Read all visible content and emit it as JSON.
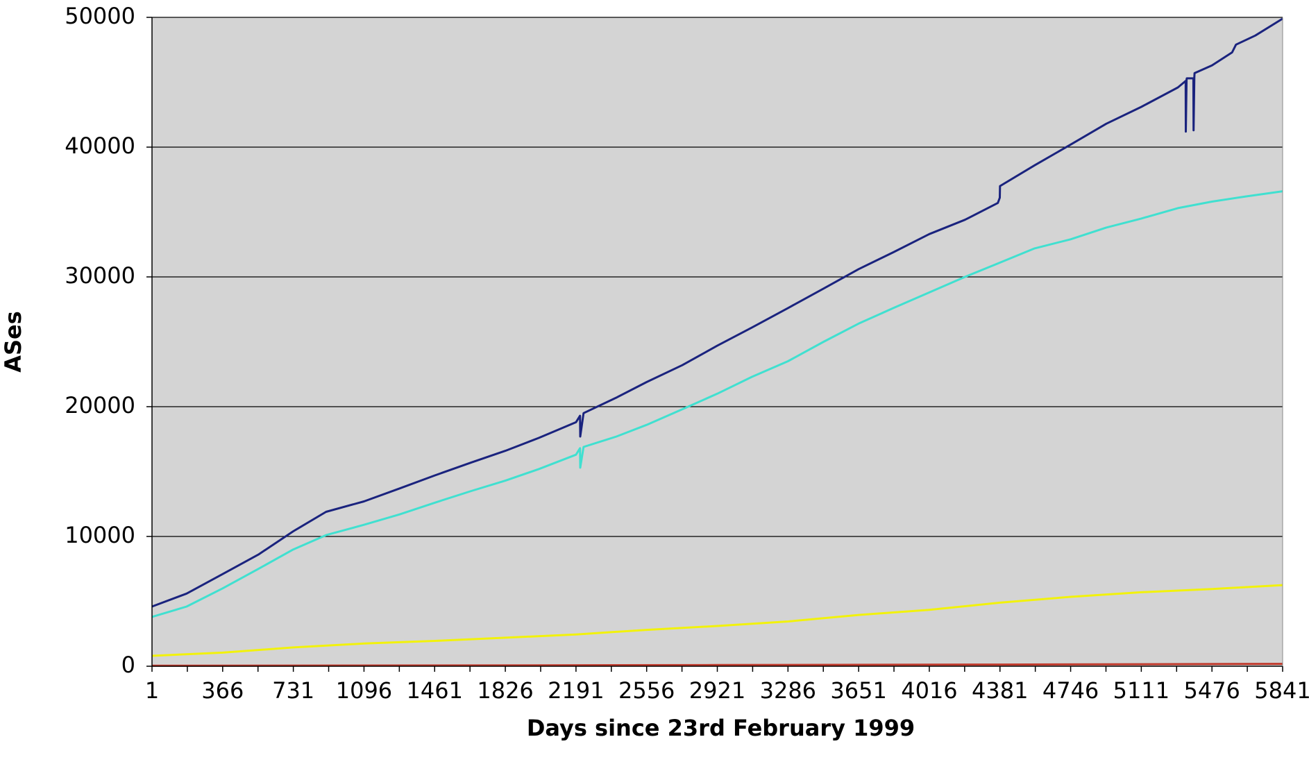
{
  "chart_data": {
    "type": "line",
    "title": "",
    "xlabel": "Days since 23rd February 1999",
    "ylabel": "ASes",
    "xlim": [
      1,
      5841
    ],
    "ylim": [
      0,
      50000
    ],
    "x_ticks": [
      "1",
      "366",
      "731",
      "1096",
      "1461",
      "1826",
      "2191",
      "2556",
      "2921",
      "3286",
      "3651",
      "4016",
      "4381",
      "4746",
      "5111",
      "5476",
      "5841"
    ],
    "y_ticks": [
      "0",
      "10000",
      "20000",
      "30000",
      "40000",
      "50000"
    ],
    "grid": true,
    "legend": "none",
    "plot_background": "#d4d4d4",
    "series": [
      {
        "color": "#1a237e",
        "x": [
          1,
          180,
          366,
          550,
          731,
          900,
          1096,
          1280,
          1461,
          1650,
          1826,
          2000,
          2191,
          2212,
          2213,
          2230,
          2400,
          2556,
          2740,
          2921,
          3100,
          3286,
          3470,
          3651,
          3830,
          4016,
          4200,
          4370,
          4380,
          4381,
          4560,
          4746,
          4930,
          5111,
          5300,
          5340,
          5341,
          5345,
          5346,
          5380,
          5381,
          5385,
          5386,
          5476,
          5580,
          5600,
          5700,
          5841
        ],
        "y": [
          4600,
          5600,
          7100,
          8600,
          10400,
          11900,
          12700,
          13700,
          14700,
          15700,
          16600,
          17600,
          18800,
          19300,
          17700,
          19500,
          20700,
          21900,
          23200,
          24700,
          26100,
          27600,
          29100,
          30600,
          31900,
          33300,
          34400,
          35700,
          36100,
          37000,
          38600,
          40200,
          41800,
          43100,
          44600,
          45100,
          41200,
          45200,
          45300,
          45300,
          41300,
          45400,
          45700,
          46300,
          47300,
          47900,
          48600,
          49900
        ]
      },
      {
        "color": "#40e0d0",
        "x": [
          1,
          180,
          366,
          550,
          731,
          900,
          1096,
          1280,
          1461,
          1650,
          1826,
          2000,
          2191,
          2212,
          2213,
          2230,
          2400,
          2556,
          2740,
          2921,
          3100,
          3286,
          3470,
          3651,
          3830,
          4016,
          4200,
          4381,
          4560,
          4746,
          4930,
          5111,
          5300,
          5476,
          5650,
          5841
        ],
        "y": [
          3800,
          4600,
          6000,
          7500,
          9000,
          10100,
          10900,
          11700,
          12600,
          13500,
          14300,
          15200,
          16300,
          16800,
          15300,
          16900,
          17700,
          18600,
          19800,
          21000,
          22300,
          23500,
          25000,
          26400,
          27600,
          28800,
          30000,
          31100,
          32200,
          32900,
          33800,
          34500,
          35300,
          35800,
          36200,
          36600
        ]
      },
      {
        "color": "#f2f20a",
        "x": [
          1,
          366,
          731,
          1096,
          1461,
          1826,
          2191,
          2556,
          2921,
          3286,
          3651,
          4016,
          4381,
          4746,
          5111,
          5476,
          5841
        ],
        "y": [
          800,
          1050,
          1450,
          1750,
          1950,
          2200,
          2450,
          2800,
          3100,
          3450,
          3950,
          4350,
          4900,
          5350,
          5700,
          5950,
          6250
        ]
      },
      {
        "color": "#c0392b",
        "x": [
          1,
          1461,
          2921,
          4381,
          5841
        ],
        "y": [
          40,
          60,
          90,
          130,
          180
        ]
      }
    ]
  }
}
